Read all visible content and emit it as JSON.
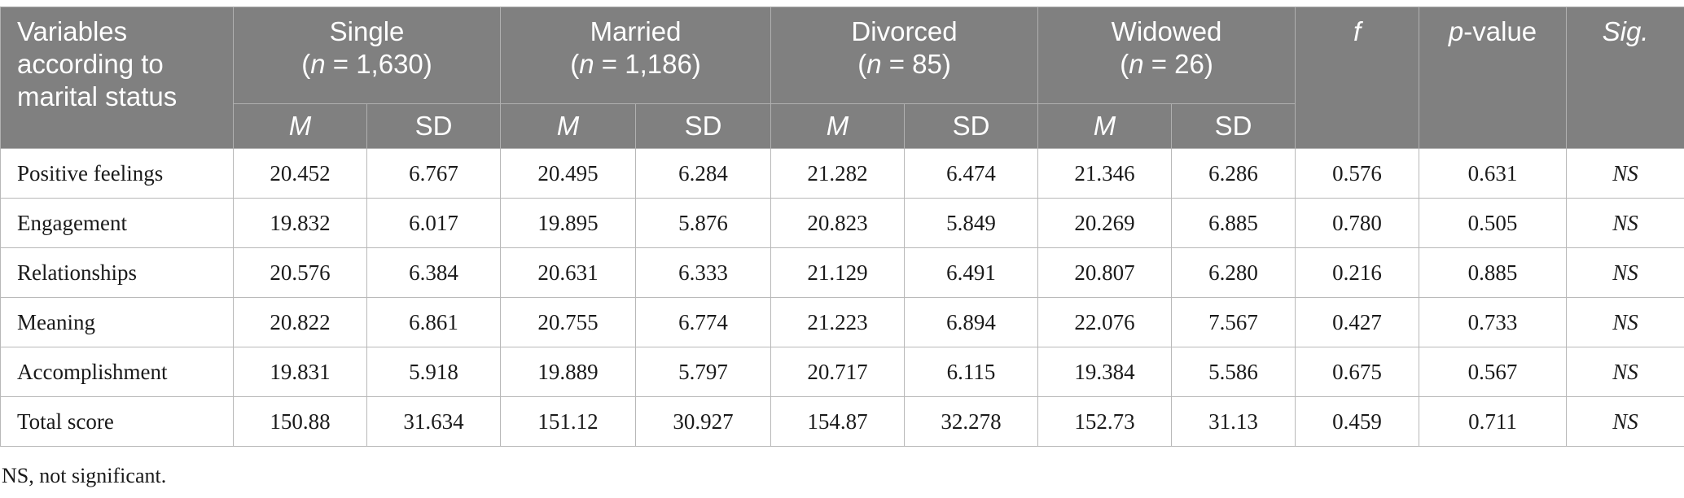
{
  "header": {
    "variables_lines": [
      "Variables",
      "according to",
      "marital status"
    ],
    "groups": [
      {
        "name": "Single",
        "n_prefix": "(",
        "n_symbol": "n",
        "n_value": " = 1,630)"
      },
      {
        "name": "Married",
        "n_prefix": "(",
        "n_symbol": "n",
        "n_value": " = 1,186)"
      },
      {
        "name": "Divorced",
        "n_prefix": "(",
        "n_symbol": "n",
        "n_value": " = 85)"
      },
      {
        "name": "Widowed",
        "n_prefix": "(",
        "n_symbol": "n",
        "n_value": " = 26)"
      }
    ],
    "f": "f",
    "p_symbol": "p",
    "p_suffix": "-value",
    "sig": "Sig.",
    "m": "M",
    "sd": "SD"
  },
  "rows": [
    {
      "label": "Positive feelings",
      "values": [
        "20.452",
        "6.767",
        "20.495",
        "6.284",
        "21.282",
        "6.474",
        "21.346",
        "6.286",
        "0.576",
        "0.631"
      ],
      "sig": "NS"
    },
    {
      "label": "Engagement",
      "values": [
        "19.832",
        "6.017",
        "19.895",
        "5.876",
        "20.823",
        "5.849",
        "20.269",
        "6.885",
        "0.780",
        "0.505"
      ],
      "sig": "NS"
    },
    {
      "label": "Relationships",
      "values": [
        "20.576",
        "6.384",
        "20.631",
        "6.333",
        "21.129",
        "6.491",
        "20.807",
        "6.280",
        "0.216",
        "0.885"
      ],
      "sig": "NS"
    },
    {
      "label": "Meaning",
      "values": [
        "20.822",
        "6.861",
        "20.755",
        "6.774",
        "21.223",
        "6.894",
        "22.076",
        "7.567",
        "0.427",
        "0.733"
      ],
      "sig": "NS"
    },
    {
      "label": "Accomplishment",
      "values": [
        "19.831",
        "5.918",
        "19.889",
        "5.797",
        "20.717",
        "6.115",
        "19.384",
        "5.586",
        "0.675",
        "0.567"
      ],
      "sig": "NS"
    },
    {
      "label": "Total score",
      "values": [
        "150.88",
        "31.634",
        "151.12",
        "30.927",
        "154.87",
        "32.278",
        "152.73",
        "31.13",
        "0.459",
        "0.711"
      ],
      "sig": "NS"
    }
  ],
  "footnote": "NS, not significant.",
  "colors": {
    "header_bg": "#808080",
    "header_text": "#ffffff"
  }
}
